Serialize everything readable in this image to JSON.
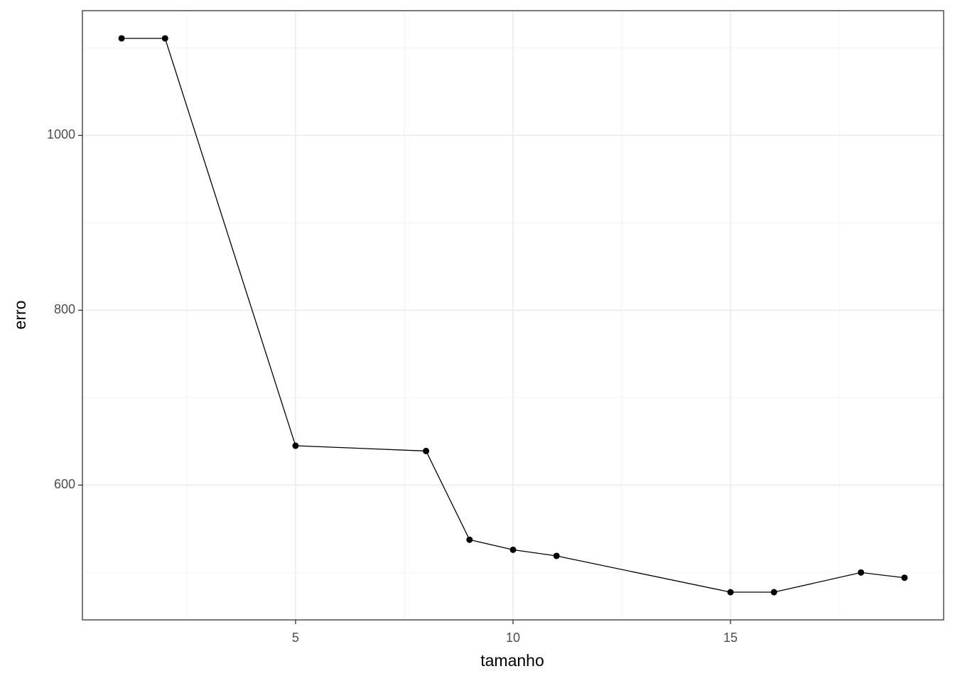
{
  "chart_data": {
    "type": "line",
    "x_label": "tamanho",
    "y_label": "erro",
    "x": [
      1,
      2,
      5,
      8,
      9,
      10,
      11,
      15,
      16,
      18,
      19
    ],
    "series": [
      {
        "color": "#000000",
        "values": [
          1111,
          1111,
          645,
          639,
          537.5,
          526,
          519,
          477.5,
          477.5,
          500,
          494
        ]
      }
    ],
    "xlim": [
      0.1,
      19.9
    ],
    "xticks": [
      5,
      10,
      15
    ],
    "x_minor_grid": [
      2.5,
      7.5,
      12.5,
      17.5
    ],
    "ylim": [
      445.8,
      1142.7
    ],
    "yticks": [
      600,
      800,
      1000
    ],
    "y_minor_grid": [
      500,
      700,
      900,
      1100
    ],
    "grid": true,
    "markers": true
  }
}
